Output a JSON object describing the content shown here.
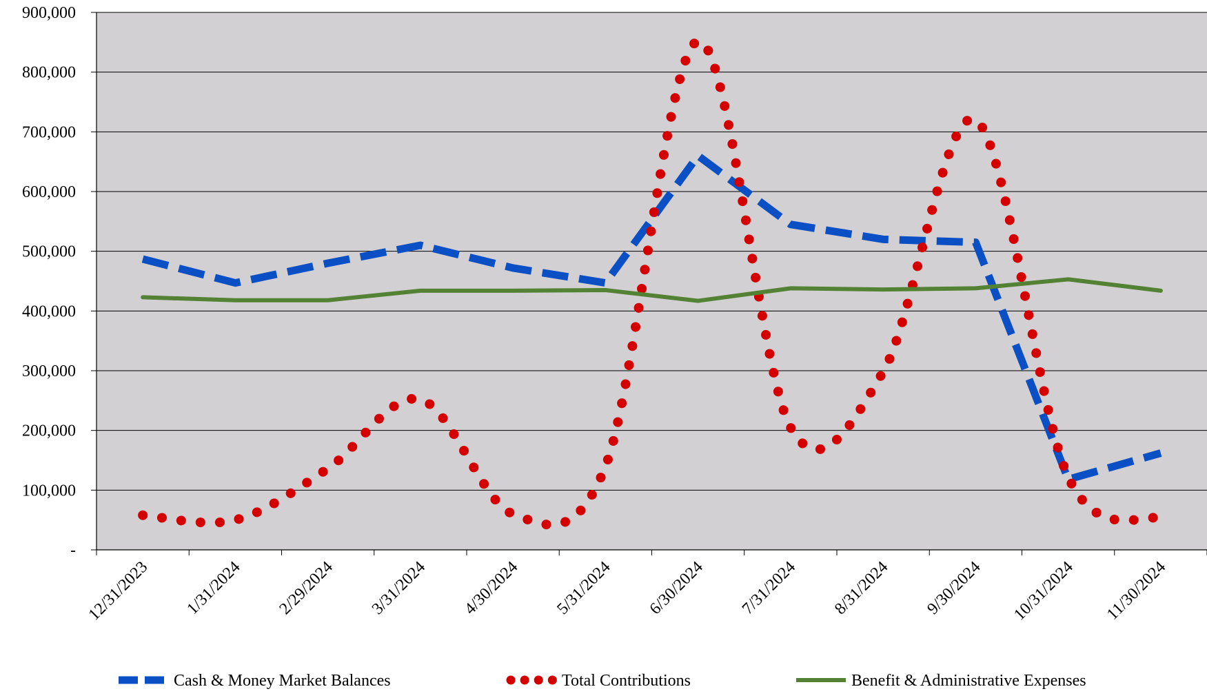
{
  "chart_data": {
    "type": "line",
    "title": "",
    "xlabel": "",
    "ylabel": "",
    "ylim": [
      0,
      900000
    ],
    "y_ticks": [
      0,
      100000,
      200000,
      300000,
      400000,
      500000,
      600000,
      700000,
      800000,
      900000
    ],
    "y_tick_labels": [
      "-",
      "100,000",
      "200,000",
      "300,000",
      "400,000",
      "500,000",
      "600,000",
      "700,000",
      "800,000",
      "900,000"
    ],
    "categories": [
      "12/31/2023",
      "1/31/2024",
      "2/29/2024",
      "3/31/2024",
      "4/30/2024",
      "5/31/2024",
      "6/30/2024",
      "7/31/2024",
      "8/31/2024",
      "9/30/2024",
      "10/31/2024",
      "11/30/2024"
    ],
    "grid": "horizontal",
    "plot_background": "#d2d0d2",
    "legend_position": "bottom",
    "series": [
      {
        "name": "Cash & Money Market Balances",
        "color": "#0a4fc4",
        "style": "dashed",
        "values": [
          487000,
          447000,
          480000,
          510000,
          472000,
          447000,
          660000,
          545000,
          520000,
          515000,
          118000,
          162000
        ]
      },
      {
        "name": "Total Contributions",
        "color": "#d40000",
        "style": "dotted",
        "values": [
          58000,
          50000,
          136000,
          252000,
          60000,
          140000,
          852000,
          205000,
          298000,
          720000,
          122000,
          52000
        ]
      },
      {
        "name": "Benefit & Administrative Expenses",
        "color": "#548235",
        "style": "solid",
        "values": [
          423000,
          418000,
          418000,
          434000,
          434000,
          435000,
          417000,
          438000,
          436000,
          438000,
          453000,
          434000
        ]
      }
    ]
  }
}
